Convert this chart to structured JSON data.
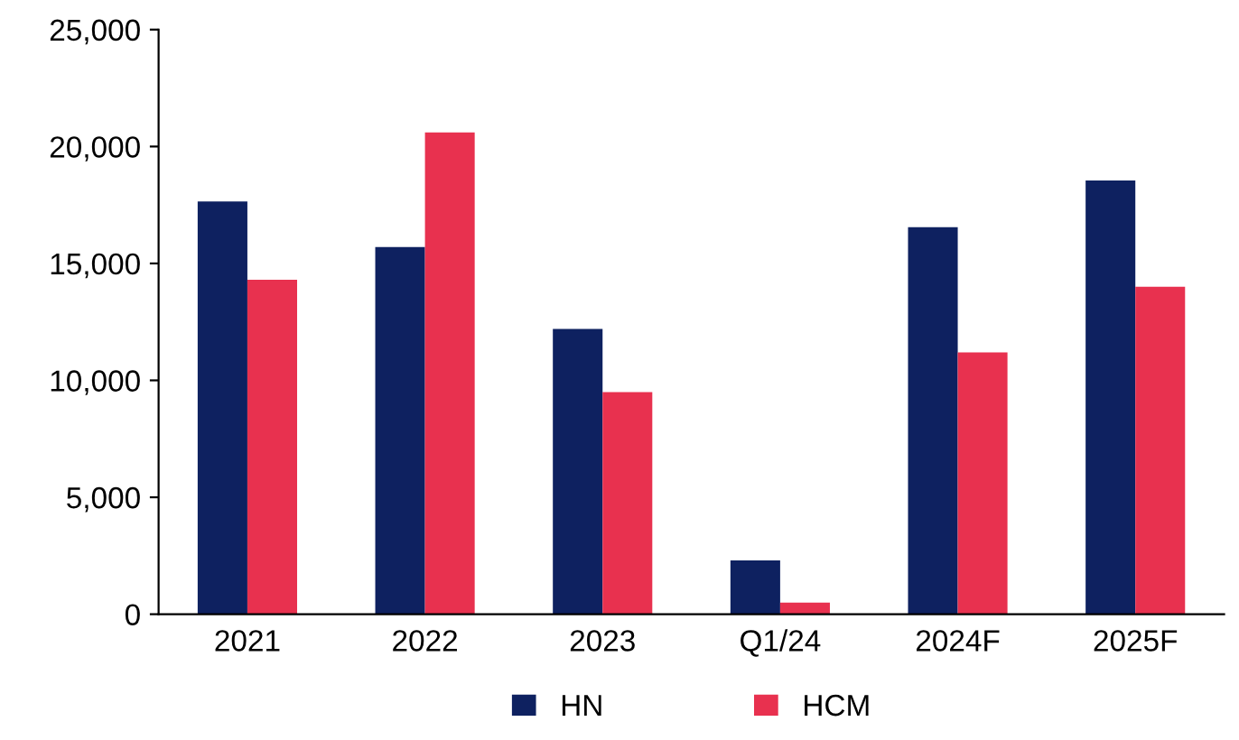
{
  "chart_data": {
    "type": "bar",
    "categories": [
      "2021",
      "2022",
      "2023",
      "Q1/24",
      "2024F",
      "2025F"
    ],
    "series": [
      {
        "name": "HN",
        "color": "#0e2160",
        "values": [
          17650,
          15700,
          12200,
          2300,
          16550,
          18550
        ]
      },
      {
        "name": "HCM",
        "color": "#e8314f",
        "values": [
          14300,
          20600,
          9500,
          500,
          11200,
          14000
        ]
      }
    ],
    "ylim": [
      0,
      25000
    ],
    "yticks": [
      {
        "value": 0,
        "label": "0"
      },
      {
        "value": 5000,
        "label": "5,000"
      },
      {
        "value": 10000,
        "label": "10,000"
      },
      {
        "value": 15000,
        "label": "15,000"
      },
      {
        "value": 20000,
        "label": "20,000"
      },
      {
        "value": 25000,
        "label": "25,000"
      }
    ],
    "legend": "bottom",
    "grid": false
  }
}
